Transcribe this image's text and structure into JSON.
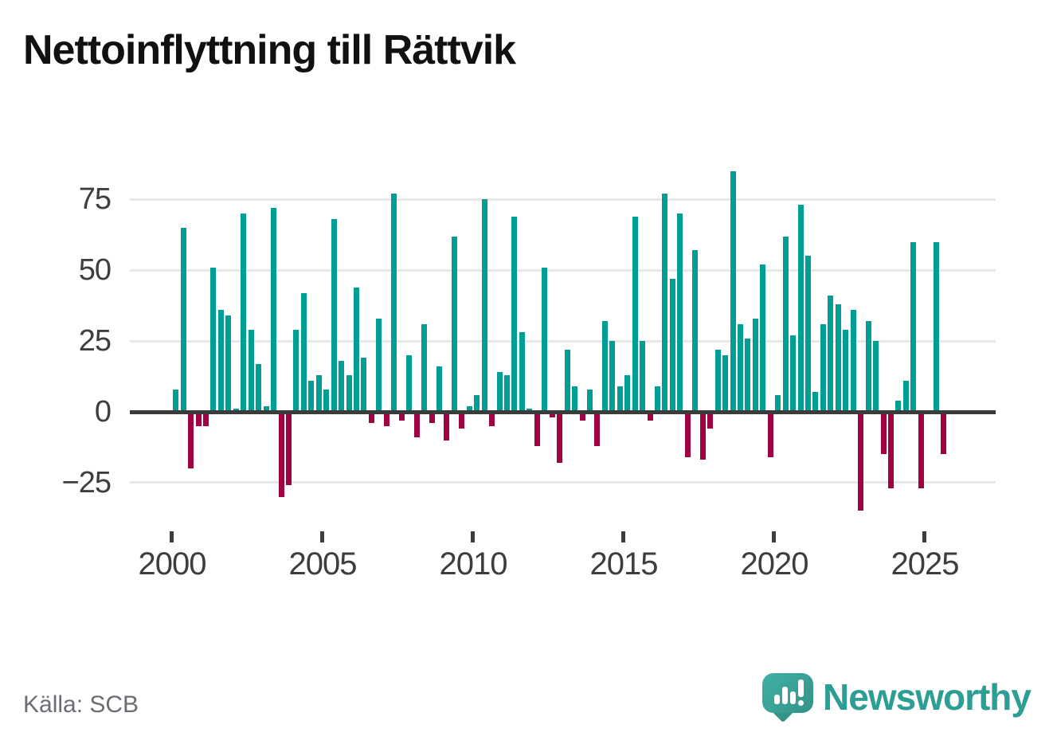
{
  "header": {
    "title": "Nettoinflyttning till Rättvik"
  },
  "footer": {
    "source": "Källa: SCB",
    "brand": {
      "wordmark": "Newsworthy",
      "icon": "speech-bubble-bar-chart-icon"
    }
  },
  "chart_data": {
    "type": "bar",
    "title": "Nettoinflyttning till Rättvik",
    "x_start": "2000-Q1",
    "frequency": "quarterly",
    "values": [
      8,
      65,
      -20,
      -5,
      -5,
      51,
      36,
      34,
      1,
      70,
      29,
      17,
      2,
      72,
      -30,
      -26,
      29,
      42,
      11,
      13,
      8,
      68,
      18,
      13,
      44,
      19,
      -4,
      33,
      -5,
      77,
      -3,
      20,
      -9,
      31,
      -4,
      16,
      -10,
      62,
      -6,
      2,
      6,
      75,
      -5,
      14,
      13,
      69,
      28,
      1,
      -12,
      51,
      -2,
      -18,
      22,
      9,
      -3,
      8,
      -12,
      32,
      25,
      9,
      13,
      69,
      25,
      -3,
      9,
      77,
      47,
      70,
      -16,
      57,
      -17,
      -6,
      22,
      20,
      85,
      31,
      26,
      33,
      52,
      -16,
      6,
      62,
      27,
      73,
      55,
      7,
      31,
      41,
      38,
      29,
      36,
      -35,
      32,
      25,
      -15,
      -27,
      4,
      11,
      60,
      -27,
      0,
      60,
      -15
    ],
    "x_tick_labels": [
      "2000",
      "2005",
      "2010",
      "2015",
      "2020",
      "2025"
    ],
    "x_tick_years": [
      2000,
      2005,
      2010,
      2015,
      2020,
      2025
    ],
    "y_ticks": [
      75,
      50,
      25,
      0,
      -25
    ],
    "y_tick_labels": [
      "75",
      "50",
      "25",
      "0",
      "−25"
    ],
    "ylim": [
      -38,
      88
    ],
    "grid": "horizontal",
    "legend": "none",
    "colors": {
      "positive": "#009e94",
      "negative": "#a00342",
      "zero_line": "#3b3b3b",
      "gridline": "#e7e7e7",
      "axis_text": "#3e3e3e",
      "brand_teal": "#2d9e94"
    }
  }
}
